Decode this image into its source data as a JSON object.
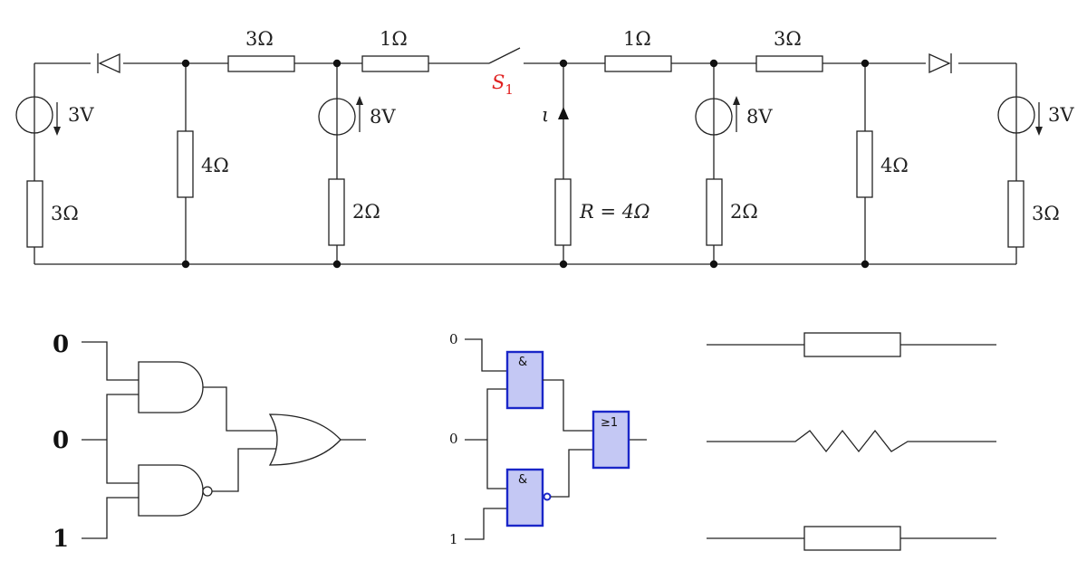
{
  "circuit": {
    "labels": {
      "r_top_left_series": "3Ω",
      "r_top_left_mid": "1Ω",
      "r_top_right_mid": "1Ω",
      "r_top_right_series": "3Ω",
      "switch": "S",
      "switch_sub": "1",
      "src_left": "3V",
      "src_left_mid": "8V",
      "src_right_mid": "8V",
      "src_right": "3V",
      "r_left_outer": "3Ω",
      "r_left_shunt": "4Ω",
      "r_left_mid_bottom": "2Ω",
      "r_center": "R = 4Ω",
      "r_right_mid_bottom": "2Ω",
      "r_right_shunt": "4Ω",
      "r_right_outer": "3Ω",
      "current": "ι"
    }
  },
  "logic_us": {
    "inputs": [
      "0",
      "0",
      "1"
    ]
  },
  "logic_iec": {
    "inputs": [
      "0",
      "0",
      "1"
    ],
    "and_symbol": "&",
    "or_symbol": "≥1"
  },
  "resistor_symbols": [
    "box",
    "zigzag",
    "box"
  ]
}
